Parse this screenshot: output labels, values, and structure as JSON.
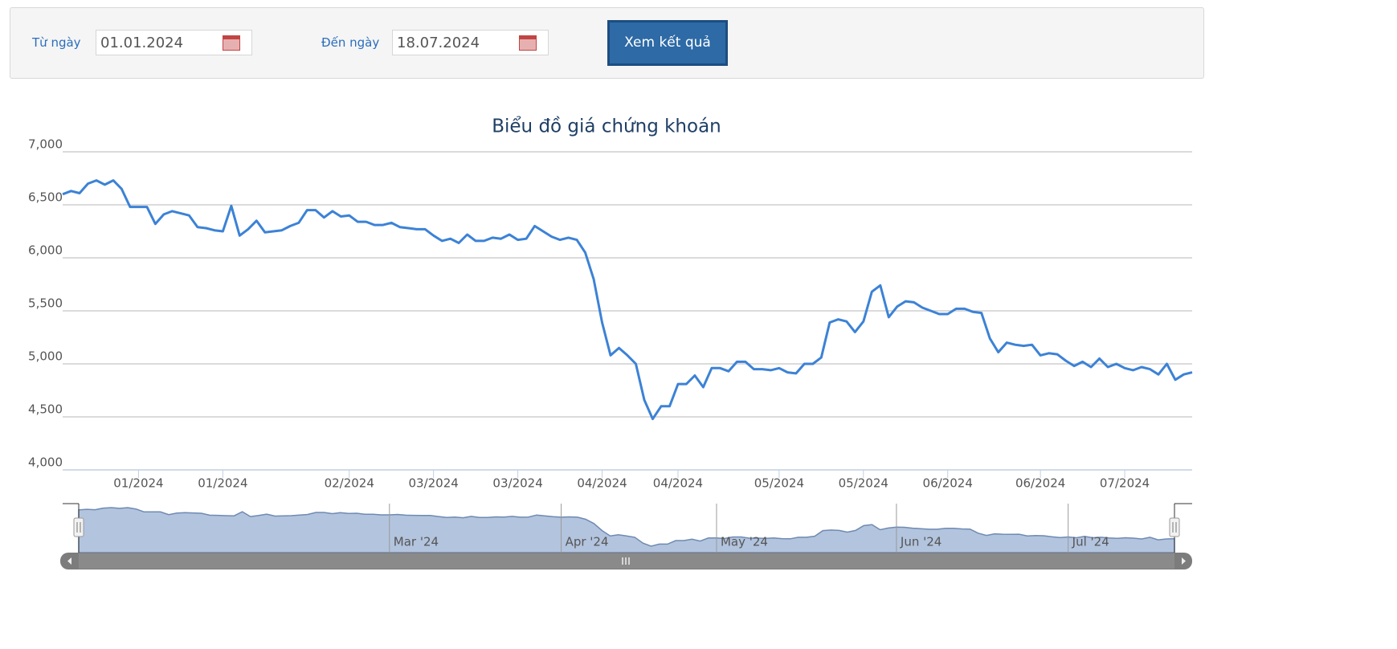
{
  "form": {
    "from_label": "Từ ngày",
    "from_value": "01.01.2024",
    "to_label": "Đến ngày",
    "to_value": "18.07.2024",
    "button": "Xem kết quả"
  },
  "chart_data": {
    "type": "line",
    "title": "Biểu đồ giá chứng khoán",
    "color": "#3c82d6",
    "grid": true,
    "ylim": [
      4000,
      7000
    ],
    "yticks": [
      {
        "value": 4000,
        "label": "4,000"
      },
      {
        "value": 4500,
        "label": "4,500"
      },
      {
        "value": 5000,
        "label": "5,000"
      },
      {
        "value": 5500,
        "label": "5,500"
      },
      {
        "value": 6000,
        "label": "6,000"
      },
      {
        "value": 6500,
        "label": "6,500"
      },
      {
        "value": 7000,
        "label": "7,000"
      }
    ],
    "values": [
      6600,
      6630,
      6610,
      6700,
      6730,
      6690,
      6730,
      6650,
      6480,
      6480,
      6480,
      6320,
      6410,
      6440,
      6420,
      6400,
      6290,
      6280,
      6260,
      6250,
      6490,
      6210,
      6270,
      6350,
      6240,
      6250,
      6260,
      6300,
      6330,
      6450,
      6450,
      6380,
      6440,
      6390,
      6400,
      6340,
      6340,
      6310,
      6310,
      6330,
      6290,
      6280,
      6270,
      6270,
      6210,
      6160,
      6180,
      6140,
      6220,
      6160,
      6160,
      6190,
      6180,
      6220,
      6170,
      6180,
      6300,
      6250,
      6200,
      6170,
      6190,
      6170,
      6050,
      5800,
      5390,
      5080,
      5150,
      5080,
      5000,
      4660,
      4480,
      4600,
      4600,
      4810,
      4810,
      4890,
      4780,
      4960,
      4960,
      4930,
      5020,
      5020,
      4950,
      4950,
      4940,
      4960,
      4920,
      4910,
      5000,
      5000,
      5060,
      5390,
      5420,
      5400,
      5300,
      5400,
      5680,
      5740,
      5440,
      5540,
      5590,
      5580,
      5530,
      5500,
      5470,
      5470,
      5520,
      5520,
      5490,
      5480,
      5240,
      5110,
      5200,
      5180,
      5170,
      5180,
      5080,
      5100,
      5090,
      5030,
      4980,
      5020,
      4970,
      5050,
      4970,
      5000,
      4960,
      4940,
      4970,
      4950,
      4900,
      5000,
      4850,
      4900,
      4920
    ],
    "categories": [
      null,
      null,
      null,
      null,
      null,
      null,
      null,
      null,
      null,
      "01/2024",
      null,
      null,
      null,
      null,
      null,
      null,
      null,
      null,
      null,
      "01/2024",
      null,
      null,
      null,
      null,
      null,
      null,
      null,
      null,
      null,
      null,
      null,
      null,
      null,
      null,
      "02/2024",
      null,
      null,
      null,
      null,
      null,
      null,
      null,
      null,
      null,
      "03/2024",
      null,
      null,
      null,
      null,
      null,
      null,
      null,
      null,
      null,
      "03/2024",
      null,
      null,
      null,
      null,
      null,
      null,
      null,
      null,
      null,
      "04/2024",
      null,
      null,
      null,
      null,
      null,
      null,
      null,
      null,
      "04/2024",
      null,
      null,
      null,
      null,
      null,
      null,
      null,
      null,
      null,
      null,
      null,
      "05/2024",
      null,
      null,
      null,
      null,
      null,
      null,
      null,
      null,
      null,
      "05/2024",
      null,
      null,
      null,
      null,
      null,
      null,
      null,
      null,
      null,
      "06/2024",
      null,
      null,
      null,
      null,
      null,
      null,
      null,
      null,
      null,
      null,
      "06/2024",
      null,
      null,
      null,
      null,
      null,
      null,
      null,
      null,
      null,
      "07/2024",
      null,
      null,
      null,
      null,
      null,
      null,
      null,
      null
    ],
    "navigator_categories": [
      null,
      null,
      null,
      null,
      null,
      null,
      null,
      null,
      null,
      null,
      null,
      null,
      null,
      null,
      null,
      null,
      null,
      null,
      null,
      null,
      null,
      null,
      null,
      null,
      null,
      null,
      null,
      null,
      null,
      null,
      null,
      null,
      null,
      null,
      null,
      null,
      null,
      null,
      "Mar '24",
      null,
      null,
      null,
      null,
      null,
      null,
      null,
      null,
      null,
      null,
      null,
      null,
      null,
      null,
      null,
      null,
      null,
      null,
      null,
      null,
      "Apr '24",
      null,
      null,
      null,
      null,
      null,
      null,
      null,
      null,
      null,
      null,
      null,
      null,
      null,
      null,
      null,
      null,
      null,
      null,
      "May '24",
      null,
      null,
      null,
      null,
      null,
      null,
      null,
      null,
      null,
      null,
      null,
      null,
      null,
      null,
      null,
      null,
      null,
      null,
      null,
      null,
      null,
      "Jun '24",
      null,
      null,
      null,
      null,
      null,
      null,
      null,
      null,
      null,
      null,
      null,
      null,
      null,
      null,
      null,
      null,
      null,
      null,
      null,
      null,
      "Jul '24",
      null,
      null,
      null,
      null,
      null,
      null,
      null,
      null,
      null,
      null,
      null,
      null,
      null
    ]
  }
}
